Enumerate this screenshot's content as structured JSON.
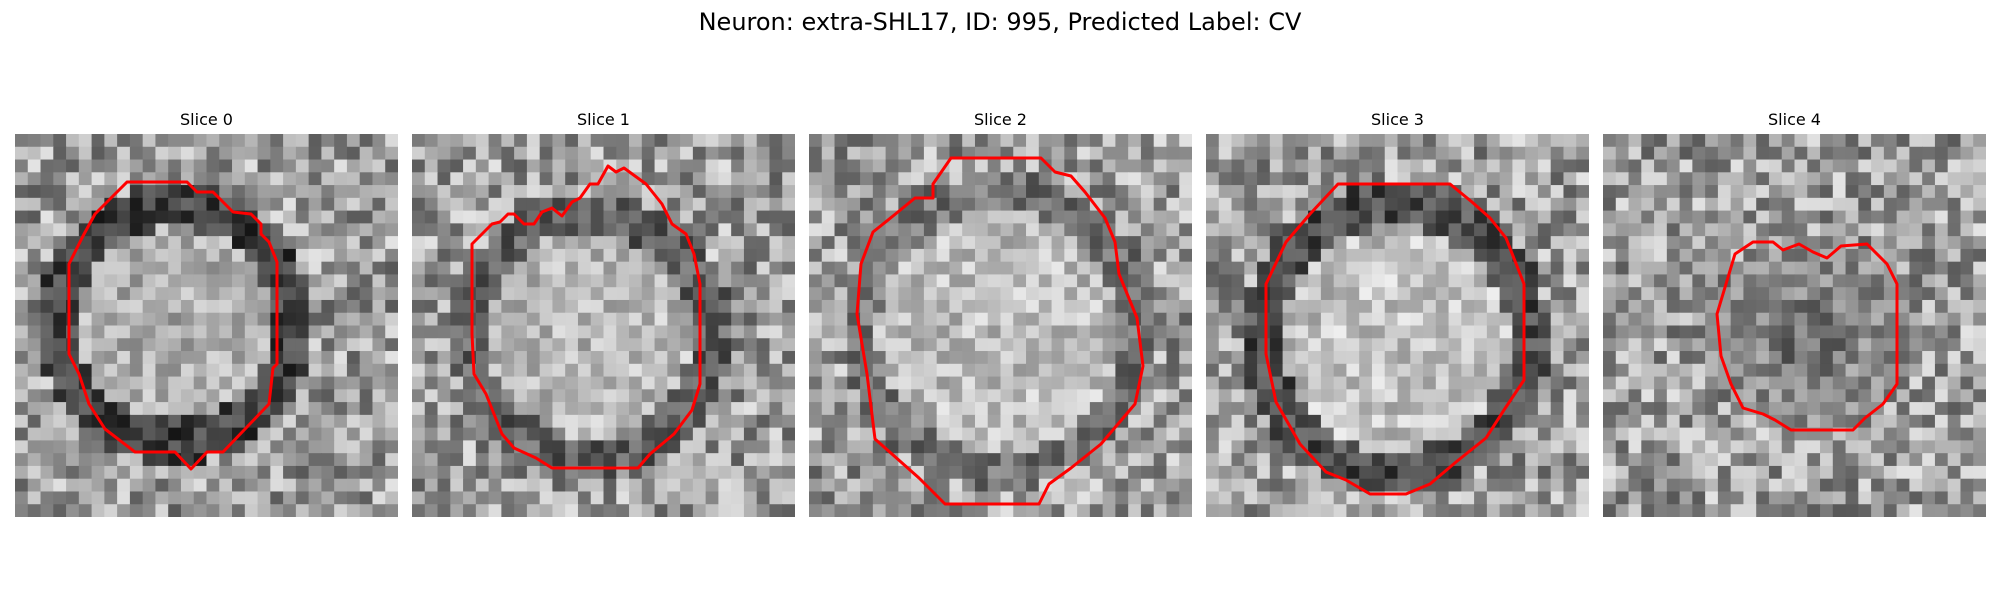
{
  "figure": {
    "suptitle": "Neuron: extra-SHL17, ID: 995, Predicted Label: CV"
  },
  "slices": [
    {
      "title": "Slice 0"
    },
    {
      "title": "Slice 1"
    },
    {
      "title": "Slice 2"
    },
    {
      "title": "Slice 3"
    },
    {
      "title": "Slice 4"
    }
  ],
  "colors": {
    "contour": "#ff0000"
  }
}
